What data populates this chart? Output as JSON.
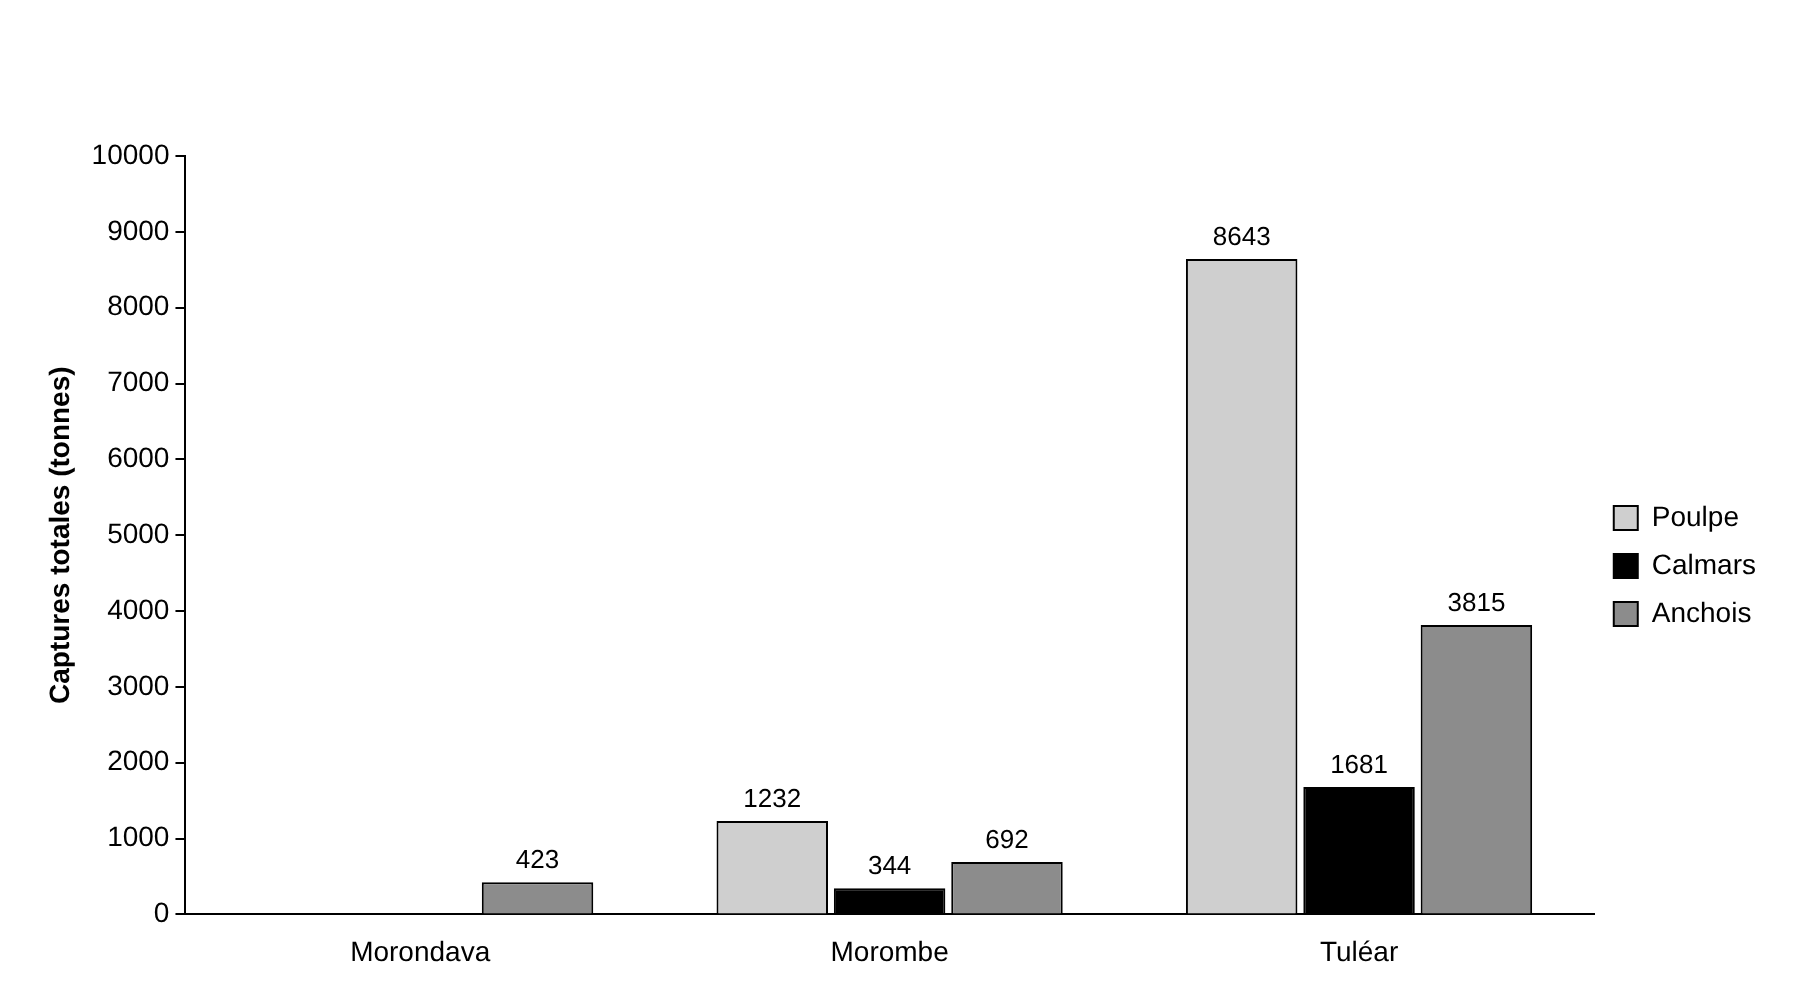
{
  "chart_data": {
    "type": "bar",
    "ylabel": "Captures totales (tonnes)",
    "categories": [
      "Morondava",
      "Morombe",
      "Tuléar"
    ],
    "series": [
      {
        "name": "Poulpe",
        "color": "#cfcfcf",
        "values": [
          null,
          1232,
          8643
        ]
      },
      {
        "name": "Calmars",
        "color": "#000000",
        "values": [
          null,
          344,
          1681
        ]
      },
      {
        "name": "Anchois",
        "color": "#8c8c8c",
        "values": [
          423,
          692,
          3815
        ]
      }
    ],
    "ylim": [
      0,
      10000
    ],
    "yticks": [
      0,
      1000,
      2000,
      3000,
      4000,
      5000,
      6000,
      7000,
      8000,
      9000,
      10000
    ],
    "grid": false,
    "legend": "right",
    "data_labels": true
  }
}
